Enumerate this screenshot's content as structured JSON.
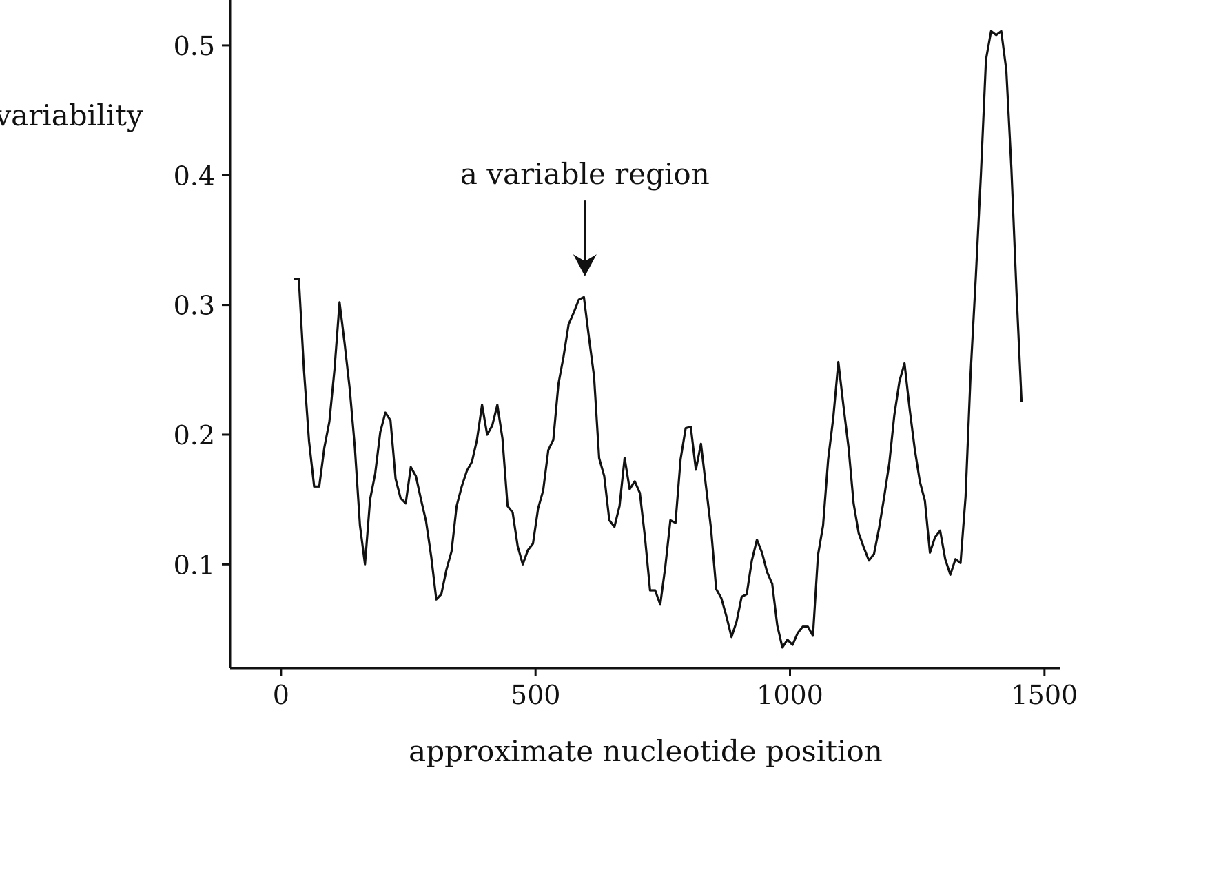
{
  "chart_data": {
    "type": "line",
    "title": "",
    "xlabel": "approximate nucleotide position",
    "ylabel": "variability",
    "xlim": [
      -100,
      1530
    ],
    "ylim": [
      0.02,
      0.535
    ],
    "xticks": [
      0,
      500,
      1000,
      1500
    ],
    "yticks": [
      0.1,
      0.2,
      0.3,
      0.4,
      0.5
    ],
    "xtick_labels": [
      "0",
      "500",
      "1000",
      "1500"
    ],
    "ytick_labels": [
      "0.1",
      "0.2",
      "0.3",
      "0.4",
      "0.5"
    ],
    "grid": false,
    "legend": "none",
    "line_color": "#111111",
    "annotation": {
      "text": "a variable region",
      "x": 597,
      "y": 0.322,
      "arrow": "down"
    },
    "series": [
      {
        "x": [
          25,
          35,
          45,
          55,
          65,
          75,
          85,
          95,
          105,
          115,
          125,
          135,
          145,
          155,
          165,
          175,
          185,
          195,
          205,
          215,
          225,
          235,
          245,
          255,
          265,
          275,
          285,
          295,
          305,
          315,
          325,
          335,
          345,
          355,
          365,
          375,
          385,
          395,
          405,
          415,
          425,
          435,
          445,
          455,
          465,
          475,
          485,
          495,
          505,
          515,
          525,
          535,
          545,
          555,
          565,
          575,
          585,
          595,
          605,
          615,
          625,
          635,
          645,
          655,
          665,
          675,
          685,
          695,
          705,
          715,
          725,
          735,
          745,
          755,
          765,
          775,
          785,
          795,
          805,
          815,
          825,
          835,
          845,
          855,
          865,
          875,
          885,
          895,
          905,
          915,
          925,
          935,
          945,
          955,
          965,
          975,
          985,
          995,
          1005,
          1015,
          1025,
          1035,
          1045,
          1055,
          1065,
          1075,
          1085,
          1095,
          1105,
          1115,
          1125,
          1135,
          1145,
          1155,
          1165,
          1175,
          1185,
          1195,
          1205,
          1215,
          1225,
          1235,
          1245,
          1255,
          1265,
          1275,
          1285,
          1295,
          1305,
          1315,
          1325,
          1335,
          1345,
          1355,
          1365,
          1375,
          1385,
          1395,
          1405,
          1415,
          1425,
          1435,
          1445,
          1455
        ],
        "values": [
          0.32,
          0.32,
          0.25,
          0.195,
          0.16,
          0.16,
          0.19,
          0.21,
          0.25,
          0.302,
          0.27,
          0.235,
          0.19,
          0.13,
          0.1,
          0.15,
          0.17,
          0.202,
          0.217,
          0.211,
          0.166,
          0.151,
          0.147,
          0.175,
          0.168,
          0.15,
          0.133,
          0.106,
          0.073,
          0.077,
          0.096,
          0.11,
          0.145,
          0.16,
          0.172,
          0.179,
          0.196,
          0.223,
          0.2,
          0.207,
          0.223,
          0.197,
          0.145,
          0.14,
          0.114,
          0.1,
          0.111,
          0.116,
          0.143,
          0.157,
          0.188,
          0.196,
          0.239,
          0.26,
          0.285,
          0.294,
          0.304,
          0.306,
          0.275,
          0.245,
          0.182,
          0.168,
          0.134,
          0.129,
          0.145,
          0.182,
          0.158,
          0.164,
          0.155,
          0.121,
          0.08,
          0.08,
          0.069,
          0.098,
          0.134,
          0.132,
          0.181,
          0.205,
          0.206,
          0.173,
          0.193,
          0.16,
          0.127,
          0.081,
          0.074,
          0.06,
          0.044,
          0.056,
          0.075,
          0.077,
          0.103,
          0.119,
          0.109,
          0.094,
          0.085,
          0.053,
          0.036,
          0.042,
          0.038,
          0.047,
          0.052,
          0.052,
          0.045,
          0.107,
          0.13,
          0.181,
          0.213,
          0.256,
          0.222,
          0.19,
          0.147,
          0.124,
          0.113,
          0.103,
          0.108,
          0.128,
          0.152,
          0.178,
          0.215,
          0.241,
          0.255,
          0.22,
          0.189,
          0.164,
          0.149,
          0.109,
          0.121,
          0.126,
          0.104,
          0.092,
          0.104,
          0.101,
          0.152,
          0.248,
          0.321,
          0.4,
          0.489,
          0.511,
          0.508,
          0.511,
          0.481,
          0.405,
          0.31,
          0.225
        ]
      }
    ]
  }
}
